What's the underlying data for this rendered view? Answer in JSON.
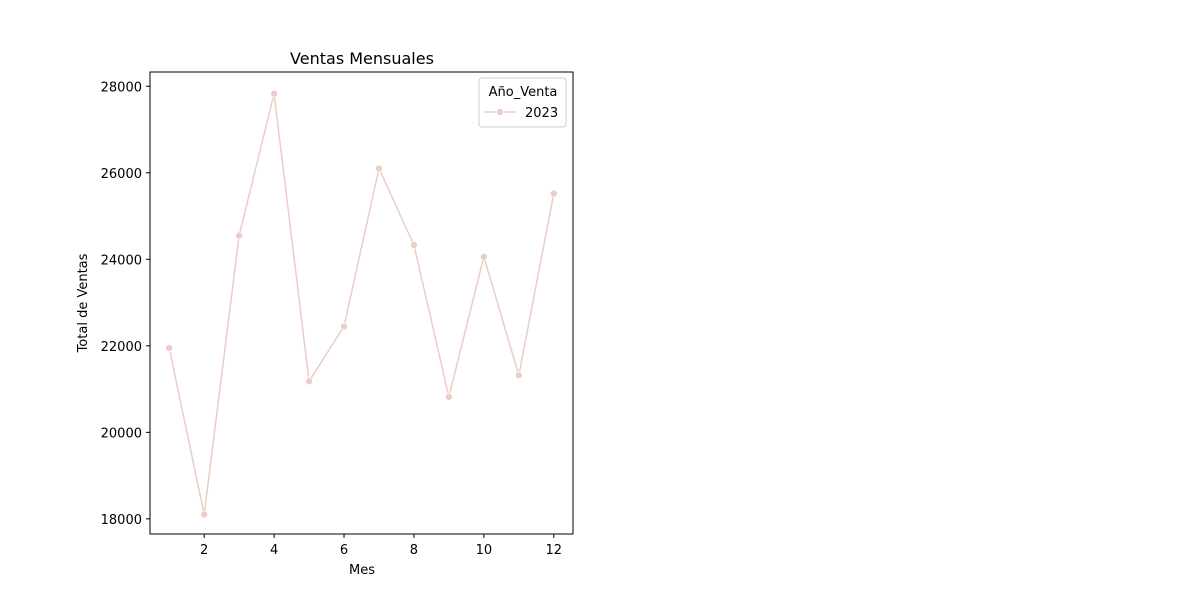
{
  "chart_data": {
    "type": "line",
    "title": "Ventas Mensuales",
    "xlabel": "Mes",
    "ylabel": "Total de Ventas",
    "xlim": [
      0.45,
      12.55
    ],
    "ylim": [
      17650,
      28330
    ],
    "xticks": [
      2,
      4,
      6,
      8,
      10,
      12
    ],
    "yticks": [
      18000,
      20000,
      22000,
      24000,
      26000,
      28000
    ],
    "grid": false,
    "legend": {
      "title": "Año_Venta",
      "placement": "top-right"
    },
    "x": [
      1,
      2,
      3,
      4,
      5,
      6,
      7,
      8,
      9,
      10,
      11,
      12
    ],
    "series": [
      {
        "name": "2023",
        "color": "#ebcdc4",
        "marker": "circle",
        "values": [
          21950,
          18100,
          24550,
          27830,
          21180,
          22450,
          26100,
          24330,
          20820,
          24060,
          21320,
          25520
        ]
      }
    ]
  }
}
